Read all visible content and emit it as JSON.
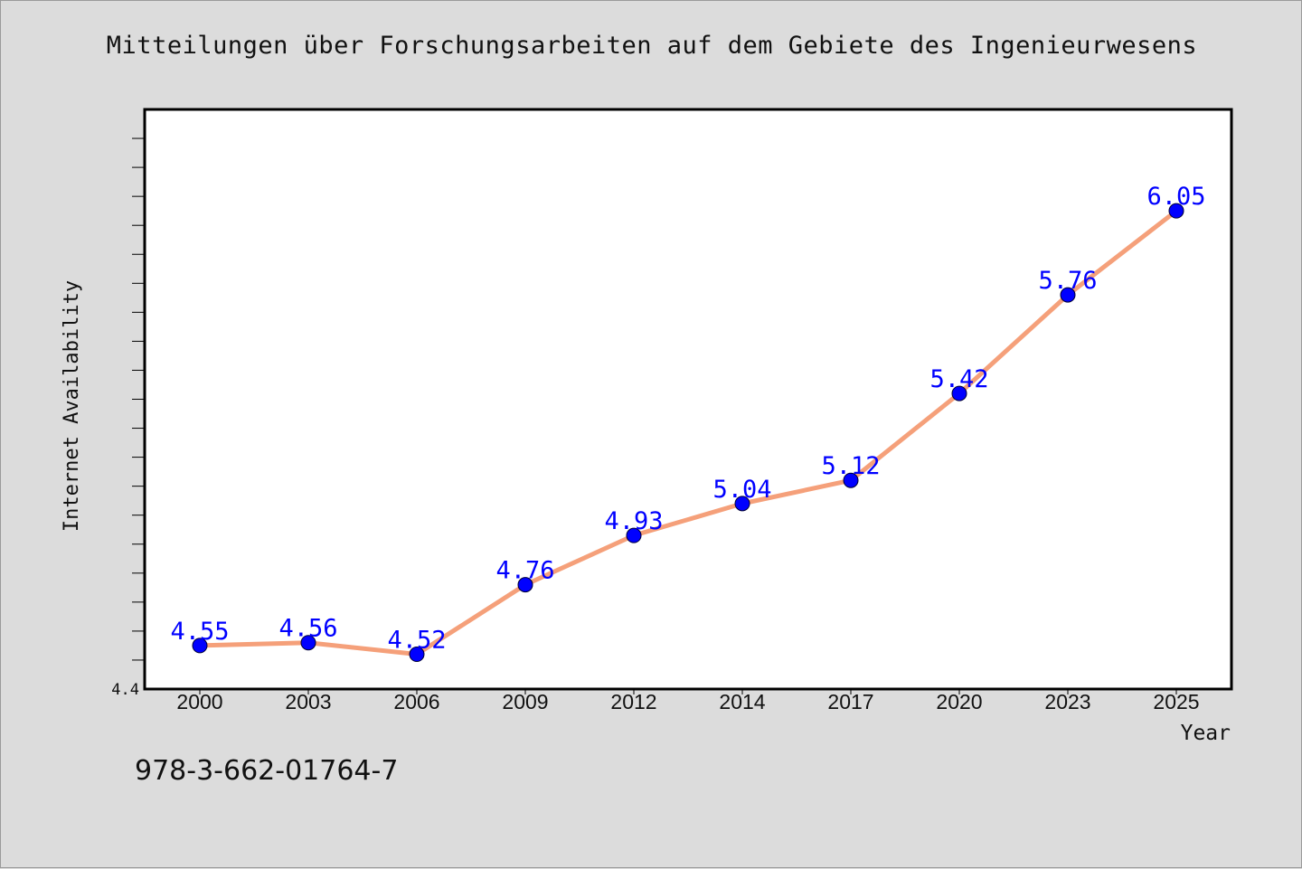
{
  "chart_title": "Mitteilungen über Forschungsarbeiten auf dem Gebiete des Ingenieurwesens",
  "footer_code": "978-3-662-01764-7",
  "colors": {
    "background": "#dcdcdc",
    "plot_background": "#ffffff",
    "line": "#f5a07a",
    "marker": "#0000ff",
    "data_label": "#0000ff"
  },
  "chart_data": {
    "type": "line",
    "title": "Mitteilungen über Forschungsarbeiten auf dem Gebiete des Ingenieurwesens",
    "xlabel": "Year",
    "ylabel": "Internet Availability",
    "categories": [
      "2000",
      "2003",
      "2006",
      "2009",
      "2012",
      "2014",
      "2017",
      "2020",
      "2023",
      "2025"
    ],
    "series": [
      {
        "values": [
          4.55,
          4.56,
          4.52,
          4.76,
          4.93,
          5.04,
          5.12,
          5.42,
          5.76,
          6.05
        ],
        "labels": [
          "4.55",
          "4.56",
          "4.52",
          "4.76",
          "4.93",
          "5.04",
          "5.12",
          "5.42",
          "5.76",
          "6.05"
        ]
      }
    ],
    "ylim": [
      4.4,
      6.4
    ],
    "y_tick_labels": [
      "4.4"
    ],
    "grid": false,
    "legend": "none"
  }
}
